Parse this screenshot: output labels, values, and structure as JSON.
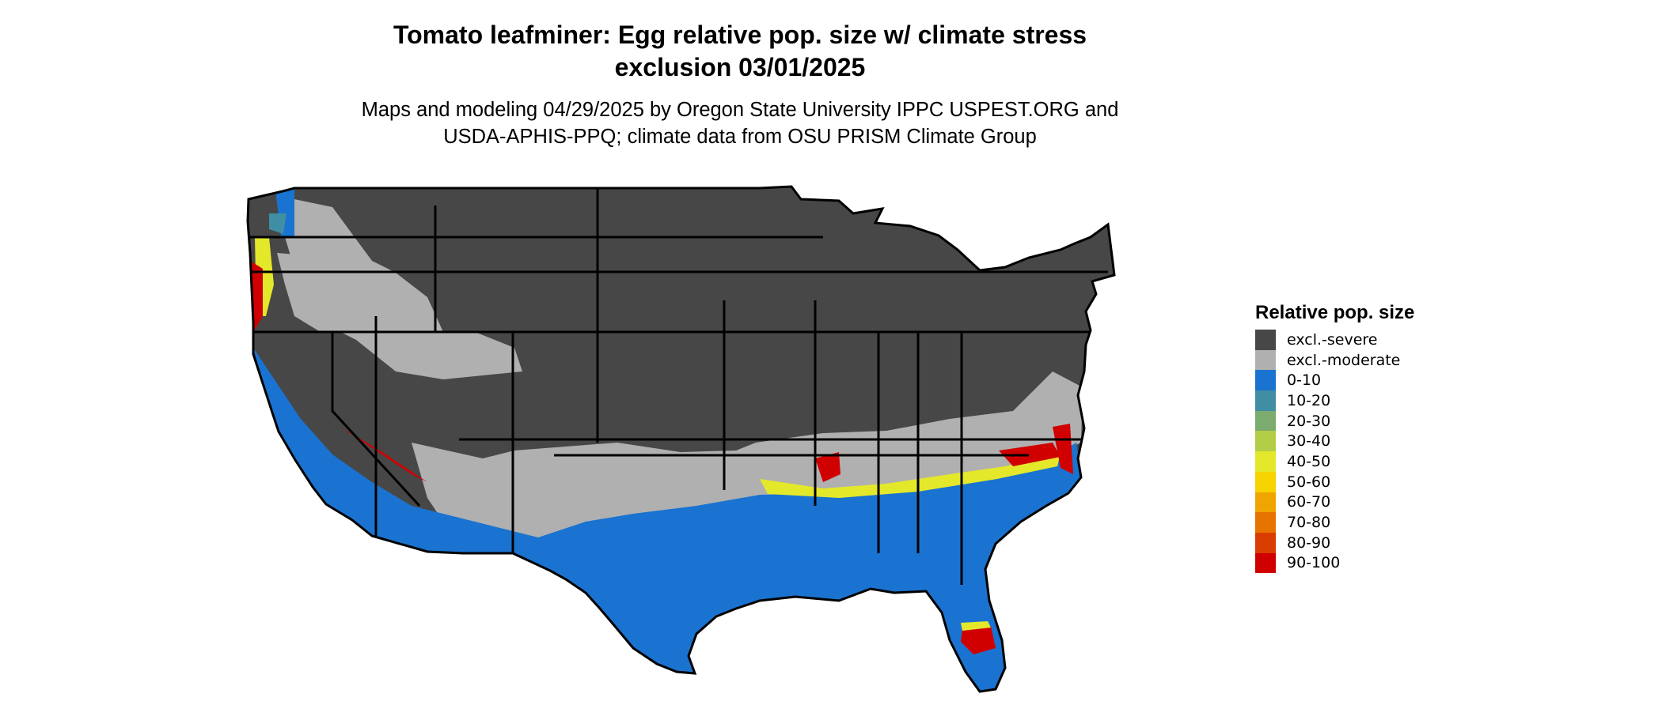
{
  "map": {
    "title_line1": "Tomato leafminer: Egg relative pop. size w/ climate stress",
    "title_line2": "exclusion 03/01/2025",
    "subtitle_line1": "Maps and modeling 04/29/2025 by Oregon State University IPPC USPEST.ORG and",
    "subtitle_line2": "USDA-APHIS-PPQ; climate data from OSU PRISM Climate Group"
  },
  "legend": {
    "title": "Relative pop. size",
    "items": [
      {
        "label": "excl.-severe",
        "color": "#474747"
      },
      {
        "label": "excl.-moderate",
        "color": "#b0b0b0"
      },
      {
        "label": "0-10",
        "color": "#1a73d0"
      },
      {
        "label": "10-20",
        "color": "#3f8ea3"
      },
      {
        "label": "20-30",
        "color": "#7bab6f"
      },
      {
        "label": "30-40",
        "color": "#b3cd47"
      },
      {
        "label": "40-50",
        "color": "#e4e82a"
      },
      {
        "label": "50-60",
        "color": "#f7d400"
      },
      {
        "label": "60-70",
        "color": "#f0a400"
      },
      {
        "label": "70-80",
        "color": "#e77400"
      },
      {
        "label": "80-90",
        "color": "#d93d00"
      },
      {
        "label": "90-100",
        "color": "#d10000"
      }
    ]
  }
}
